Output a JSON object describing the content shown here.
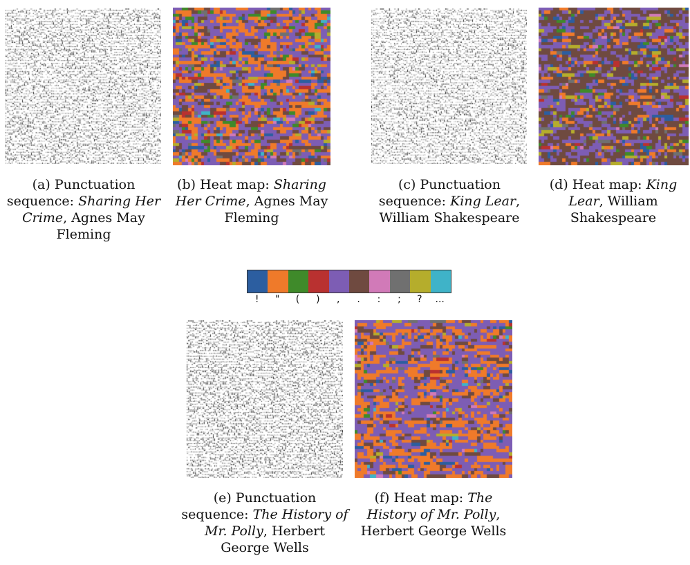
{
  "legend": {
    "symbols": [
      "!",
      "\"",
      "(",
      ")",
      ",",
      ".",
      ":",
      ";",
      "?",
      "..."
    ],
    "colors": [
      "#2c5ea0",
      "#ef7a2a",
      "#3f8a2a",
      "#b93130",
      "#7d5db4",
      "#6f4a40",
      "#d17ab8",
      "#707070",
      "#b5ad2c",
      "#3fb3c8"
    ]
  },
  "figures": [
    {
      "letter": "(a) ",
      "kind": "Punctuation sequence: ",
      "title": "Sharing Her Crime",
      "author": ", Agnes May Fleming"
    },
    {
      "letter": "(b) ",
      "kind": "Heat map: ",
      "title": "Sharing Her Crime",
      "author": ", Agnes May Fleming"
    },
    {
      "letter": "(c) ",
      "kind": "Punctuation sequence: ",
      "title": "King Lear",
      "author": ", William Shakespeare"
    },
    {
      "letter": "(d) ",
      "kind": "Heat map: ",
      "title": "King Lear",
      "author": ", William Shakespeare"
    },
    {
      "letter": "(e) ",
      "kind": "Punctuation sequence: ",
      "title": "The History of Mr. Polly",
      "author": ", Herbert George Wells"
    },
    {
      "letter": "(f) ",
      "kind": "Heat map: ",
      "title": "The History of Mr. Polly",
      "author": ", Herbert George Wells"
    }
  ],
  "heatmaps": [
    {
      "weights": [
        6,
        28,
        4,
        3,
        38,
        14,
        1,
        2,
        3,
        1
      ]
    },
    {
      "weights": [
        4,
        9,
        2,
        1,
        28,
        48,
        1,
        2,
        5,
        0
      ]
    },
    {
      "weights": [
        3,
        32,
        1,
        1,
        46,
        12,
        1,
        1,
        2,
        1
      ]
    }
  ]
}
